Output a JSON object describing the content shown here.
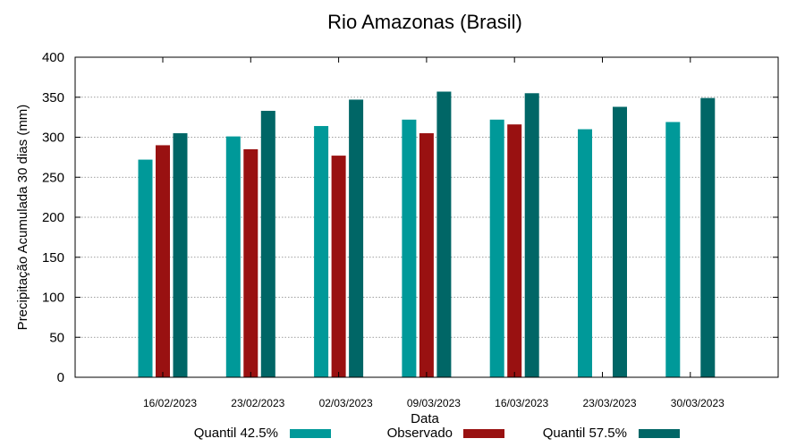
{
  "chart_data": {
    "type": "bar",
    "title": "Rio Amazonas (Brasil)",
    "xlabel": "Data",
    "ylabel": "Precipitação Acumulada 30 dias (mm)",
    "ylim": [
      0,
      400
    ],
    "yticks": [
      0,
      50,
      100,
      150,
      200,
      250,
      300,
      350,
      400
    ],
    "grid": true,
    "legend_position": "bottom",
    "categories": [
      "16/02/2023",
      "23/02/2023",
      "02/03/2023",
      "09/03/2023",
      "16/03/2023",
      "23/03/2023",
      "30/03/2023"
    ],
    "series": [
      {
        "name": "Quantil 42.5%",
        "color": "#009999",
        "values": [
          272,
          301,
          314,
          322,
          322,
          310,
          319
        ]
      },
      {
        "name": "Observado",
        "color": "#991111",
        "values": [
          290,
          285,
          277,
          305,
          316,
          null,
          null
        ]
      },
      {
        "name": "Quantil 57.5%",
        "color": "#006666",
        "values": [
          305,
          333,
          347,
          357,
          355,
          338,
          349
        ]
      }
    ]
  }
}
